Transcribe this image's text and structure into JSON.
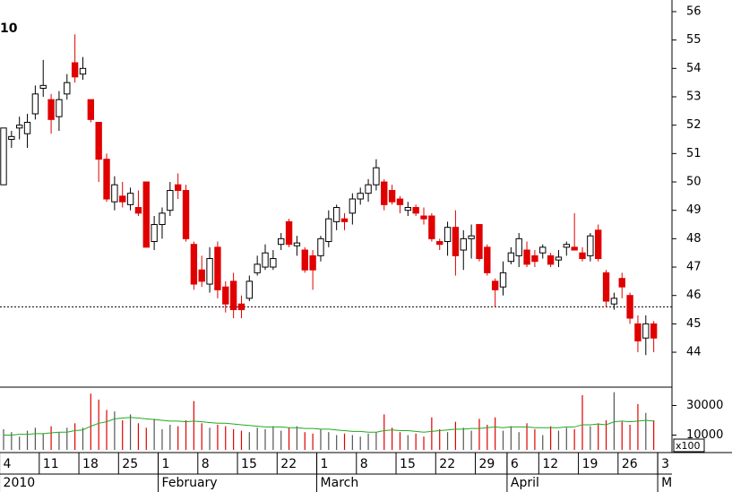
{
  "chart_data": {
    "type": "candlestick",
    "title": "10",
    "ohlc": [
      [
        49.9,
        51.9,
        49.9,
        51.9
      ],
      [
        51.5,
        51.8,
        51.2,
        51.6
      ],
      [
        51.9,
        52.3,
        51.5,
        52.0
      ],
      [
        51.7,
        52.4,
        51.2,
        52.1
      ],
      [
        52.4,
        53.4,
        52.2,
        53.1
      ],
      [
        53.3,
        54.3,
        53.0,
        53.4
      ],
      [
        52.9,
        53.1,
        51.7,
        52.2
      ],
      [
        52.3,
        53.2,
        51.8,
        52.9
      ],
      [
        53.1,
        53.8,
        52.9,
        53.5
      ],
      [
        54.2,
        55.2,
        53.5,
        53.7
      ],
      [
        53.8,
        54.4,
        53.6,
        54.0
      ],
      [
        52.9,
        52.9,
        52.1,
        52.2
      ],
      [
        52.1,
        52.1,
        50.0,
        50.8
      ],
      [
        50.8,
        51.0,
        49.3,
        49.4
      ],
      [
        49.3,
        50.2,
        49.0,
        49.9
      ],
      [
        49.5,
        50.0,
        49.1,
        49.3
      ],
      [
        49.2,
        49.8,
        49.0,
        49.6
      ],
      [
        49.1,
        49.7,
        48.8,
        48.9
      ],
      [
        50.0,
        50.0,
        47.7,
        47.7
      ],
      [
        47.9,
        48.8,
        47.6,
        48.5
      ],
      [
        48.5,
        49.1,
        48.0,
        48.9
      ],
      [
        49.0,
        50.0,
        48.8,
        49.7
      ],
      [
        49.9,
        50.3,
        49.4,
        49.7
      ],
      [
        49.7,
        49.9,
        47.9,
        48.0
      ],
      [
        47.8,
        47.9,
        46.2,
        46.4
      ],
      [
        46.9,
        47.4,
        46.3,
        46.5
      ],
      [
        46.4,
        47.7,
        46.1,
        47.3
      ],
      [
        47.7,
        47.9,
        45.9,
        46.2
      ],
      [
        46.3,
        46.5,
        45.4,
        45.7
      ],
      [
        46.5,
        46.8,
        45.2,
        45.5
      ],
      [
        45.7,
        46.0,
        45.2,
        45.5
      ],
      [
        45.9,
        46.7,
        45.8,
        46.5
      ],
      [
        46.8,
        47.4,
        46.7,
        47.1
      ],
      [
        47.0,
        47.8,
        46.9,
        47.5
      ],
      [
        47.0,
        47.6,
        46.9,
        47.3
      ],
      [
        47.8,
        48.2,
        47.6,
        48.0
      ],
      [
        48.6,
        48.7,
        47.7,
        47.8
      ],
      [
        47.75,
        48.1,
        47.4,
        47.85
      ],
      [
        47.6,
        47.7,
        46.8,
        46.9
      ],
      [
        47.4,
        47.6,
        46.2,
        46.9
      ],
      [
        47.4,
        48.1,
        47.2,
        48.0
      ],
      [
        47.9,
        49.0,
        47.7,
        48.7
      ],
      [
        48.6,
        49.2,
        48.3,
        49.1
      ],
      [
        48.7,
        48.9,
        48.3,
        48.6
      ],
      [
        48.9,
        49.6,
        48.5,
        49.4
      ],
      [
        49.4,
        49.8,
        49.2,
        49.6
      ],
      [
        49.6,
        50.1,
        49.3,
        49.9
      ],
      [
        49.9,
        50.8,
        49.7,
        50.5
      ],
      [
        50.0,
        50.1,
        49.0,
        49.2
      ],
      [
        49.7,
        49.9,
        49.2,
        49.3
      ],
      [
        49.4,
        49.5,
        48.9,
        49.2
      ],
      [
        49.0,
        49.3,
        48.8,
        49.1
      ],
      [
        49.1,
        49.2,
        48.8,
        48.9
      ],
      [
        48.8,
        49.1,
        48.5,
        48.7
      ],
      [
        48.8,
        48.9,
        47.9,
        48.0
      ],
      [
        47.9,
        48.0,
        47.6,
        47.8
      ],
      [
        47.9,
        48.6,
        47.4,
        48.4
      ],
      [
        48.4,
        49.0,
        46.7,
        47.4
      ],
      [
        47.6,
        48.3,
        46.9,
        48.0
      ],
      [
        48.0,
        48.5,
        47.3,
        48.1
      ],
      [
        48.5,
        48.5,
        47.2,
        47.3
      ],
      [
        47.7,
        47.8,
        46.7,
        46.8
      ],
      [
        46.5,
        46.6,
        45.6,
        46.2
      ],
      [
        46.3,
        47.2,
        46.0,
        46.8
      ],
      [
        47.2,
        47.7,
        47.1,
        47.5
      ],
      [
        47.4,
        48.2,
        47.0,
        48.0
      ],
      [
        47.6,
        47.9,
        47.0,
        47.1
      ],
      [
        47.4,
        47.6,
        47.0,
        47.2
      ],
      [
        47.5,
        47.8,
        47.3,
        47.7
      ],
      [
        47.4,
        47.5,
        47.0,
        47.1
      ],
      [
        47.25,
        47.6,
        47.0,
        47.35
      ],
      [
        47.7,
        47.9,
        47.4,
        47.8
      ],
      [
        47.7,
        48.9,
        47.6,
        47.6
      ],
      [
        47.5,
        47.7,
        47.2,
        47.3
      ],
      [
        47.4,
        48.2,
        47.2,
        48.1
      ],
      [
        48.3,
        48.5,
        47.2,
        47.3
      ],
      [
        46.8,
        46.9,
        45.6,
        45.8
      ],
      [
        45.7,
        46.1,
        45.5,
        45.9
      ],
      [
        46.6,
        46.8,
        45.9,
        46.3
      ],
      [
        46.0,
        46.1,
        45.0,
        45.2
      ],
      [
        45.0,
        45.3,
        44.0,
        44.4
      ],
      [
        44.5,
        45.3,
        43.9,
        45.0
      ],
      [
        45.0,
        45.1,
        44.0,
        44.5
      ]
    ],
    "volume": [
      14000,
      12000,
      9000,
      13000,
      15000,
      11000,
      16000,
      12000,
      15000,
      18000,
      15000,
      38000,
      34000,
      27000,
      26000,
      20000,
      24000,
      18000,
      15000,
      21000,
      14000,
      17000,
      16000,
      20000,
      33000,
      18000,
      15000,
      17000,
      16000,
      14000,
      13000,
      12000,
      15000,
      14000,
      16000,
      13000,
      15000,
      16000,
      12000,
      11000,
      14000,
      12000,
      10000,
      11000,
      10000,
      9000,
      11000,
      12000,
      24000,
      15000,
      12000,
      10000,
      11000,
      9000,
      22000,
      14000,
      12000,
      19000,
      15000,
      13000,
      21000,
      17000,
      22000,
      13000,
      16000,
      12000,
      18000,
      14000,
      10000,
      16000,
      13000,
      15000,
      14000,
      37000,
      16000,
      18000,
      20000,
      39000,
      19000,
      17000,
      31000,
      25000,
      20000
    ],
    "volume_ma": [
      10000,
      10000,
      10500,
      10500,
      11000,
      11000,
      11500,
      12000,
      12000,
      13000,
      13500,
      16000,
      18000,
      19000,
      21000,
      21500,
      22000,
      21500,
      21000,
      20500,
      20000,
      19500,
      19500,
      19000,
      19500,
      19000,
      18500,
      18000,
      18000,
      17500,
      17000,
      16500,
      16000,
      15500,
      15500,
      15500,
      15000,
      15000,
      14500,
      14500,
      14000,
      14000,
      13500,
      13000,
      12500,
      12500,
      12000,
      12000,
      13000,
      13500,
      13000,
      13000,
      12500,
      12000,
      12500,
      13000,
      13500,
      14000,
      14000,
      14500,
      14500,
      15000,
      15500,
      15000,
      15500,
      15500,
      15500,
      15000,
      15000,
      15000,
      15000,
      15500,
      15500,
      17000,
      17000,
      17500,
      17000,
      19000,
      19500,
      19000,
      19500,
      20000,
      19500
    ],
    "up_color": "#ffffff",
    "down_color": "#e00000",
    "ma_color": "#22aa22",
    "last_price": 45.6,
    "ylim": [
      42.77,
      56.41
    ],
    "yticks": [
      44,
      45,
      46,
      47,
      48,
      49,
      50,
      51,
      52,
      53,
      54,
      55,
      56
    ],
    "vol_ylim": [
      -1800,
      42400
    ],
    "vol_yticks": [
      10000,
      30000
    ],
    "vol_unit": "x100",
    "xlim": [
      -0.45,
      84.3
    ],
    "xticks": [
      {
        "value": 0,
        "label": "4"
      },
      {
        "value": 5,
        "label": "11"
      },
      {
        "value": 10,
        "label": "18"
      },
      {
        "value": 15,
        "label": "25"
      },
      {
        "value": 20,
        "label": "1"
      },
      {
        "value": 25,
        "label": "8"
      },
      {
        "value": 30,
        "label": "15"
      },
      {
        "value": 35,
        "label": "22"
      },
      {
        "value": 40,
        "label": "1"
      },
      {
        "value": 45,
        "label": "8"
      },
      {
        "value": 50,
        "label": "15"
      },
      {
        "value": 55,
        "label": "22"
      },
      {
        "value": 60,
        "label": "29"
      },
      {
        "value": 64,
        "label": "6"
      },
      {
        "value": 68,
        "label": "12"
      },
      {
        "value": 73,
        "label": "19"
      },
      {
        "value": 78,
        "label": "26"
      },
      {
        "value": 83,
        "label": "3"
      }
    ],
    "months": [
      {
        "value": 0,
        "label": "2010"
      },
      {
        "value": 20,
        "label": "February"
      },
      {
        "value": 40,
        "label": "March"
      },
      {
        "value": 64,
        "label": "April"
      },
      {
        "value": 83,
        "label": "M"
      }
    ]
  }
}
